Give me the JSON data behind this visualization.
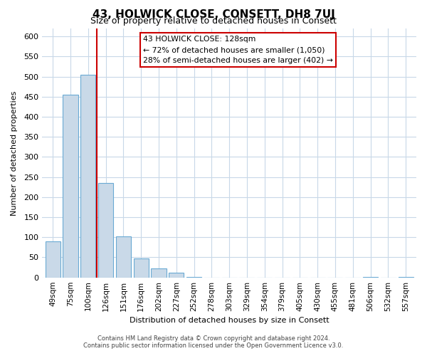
{
  "title": "43, HOLWICK CLOSE, CONSETT, DH8 7UJ",
  "subtitle": "Size of property relative to detached houses in Consett",
  "xlabel": "Distribution of detached houses by size in Consett",
  "ylabel": "Number of detached properties",
  "bar_labels": [
    "49sqm",
    "75sqm",
    "100sqm",
    "126sqm",
    "151sqm",
    "176sqm",
    "202sqm",
    "227sqm",
    "252sqm",
    "278sqm",
    "303sqm",
    "329sqm",
    "354sqm",
    "379sqm",
    "405sqm",
    "430sqm",
    "455sqm",
    "481sqm",
    "506sqm",
    "532sqm",
    "557sqm"
  ],
  "bar_values": [
    90,
    455,
    505,
    235,
    103,
    47,
    22,
    12,
    1,
    0,
    0,
    0,
    0,
    0,
    0,
    0,
    0,
    0,
    1,
    0,
    1
  ],
  "bar_color": "#c9d9e8",
  "bar_edge_color": "#6aaad4",
  "highlight_bar_index": 3,
  "highlight_line_color": "#cc0000",
  "ylim": [
    0,
    620
  ],
  "yticks": [
    0,
    50,
    100,
    150,
    200,
    250,
    300,
    350,
    400,
    450,
    500,
    550,
    600
  ],
  "annotation_title": "43 HOLWICK CLOSE: 128sqm",
  "annotation_line1": "← 72% of detached houses are smaller (1,050)",
  "annotation_line2": "28% of semi-detached houses are larger (402) →",
  "annotation_box_color": "#ffffff",
  "annotation_box_edge": "#cc0000",
  "footer_line1": "Contains HM Land Registry data © Crown copyright and database right 2024.",
  "footer_line2": "Contains public sector information licensed under the Open Government Licence v3.0.",
  "background_color": "#ffffff",
  "grid_color": "#c8d8e8"
}
